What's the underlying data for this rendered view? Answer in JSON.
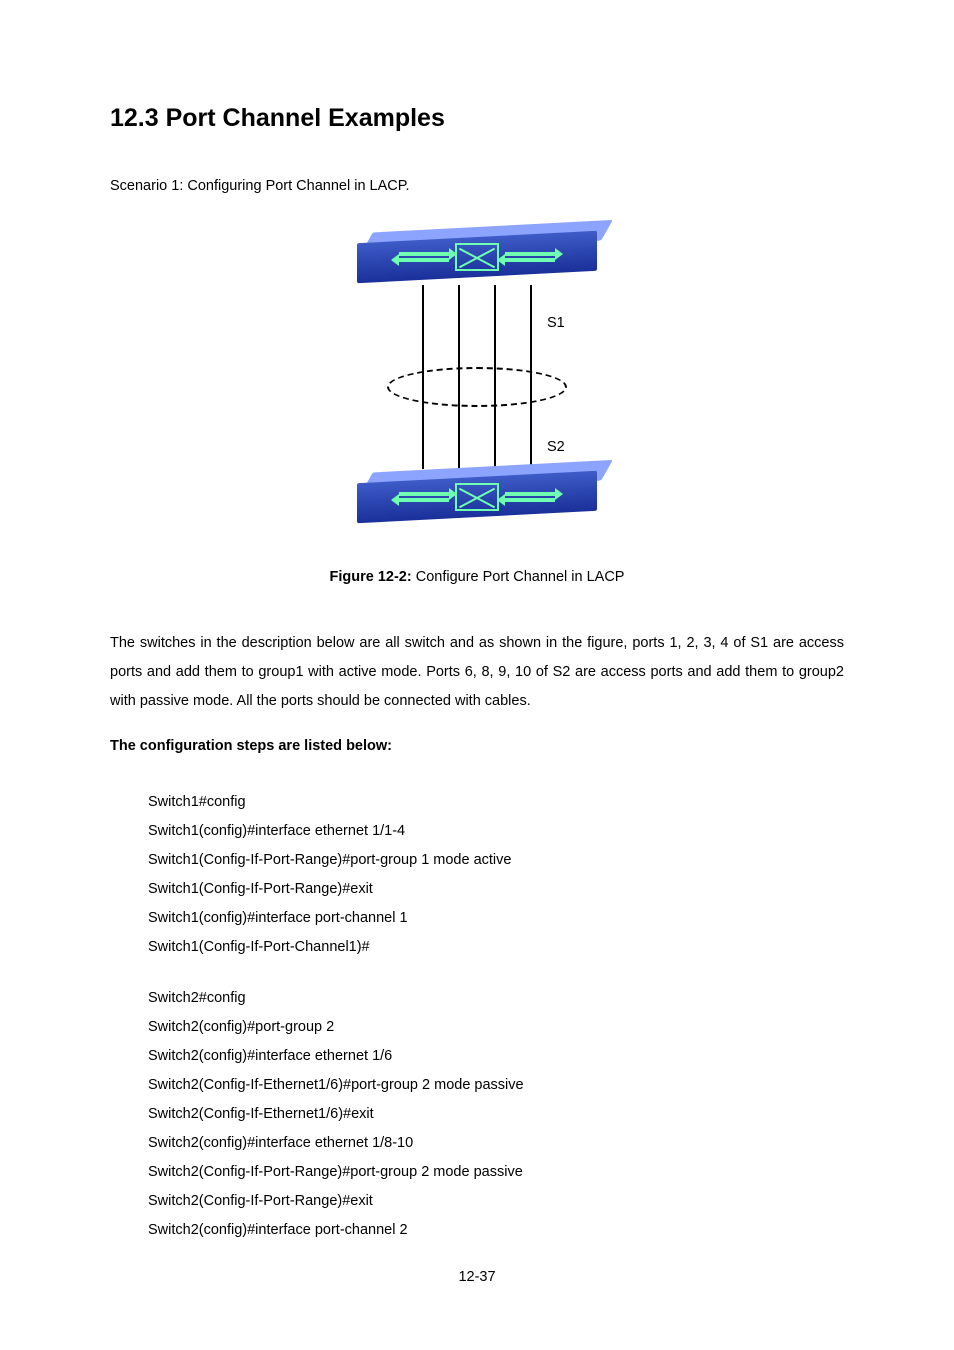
{
  "heading": "12.3 Port Channel Examples",
  "scenario_text": "Scenario 1: Configuring Port Channel in LACP.",
  "diagram": {
    "label_top": "S1",
    "label_bottom": "S2",
    "switch_color_dark": "#1a2f99",
    "switch_color_light": "#3e5cc7",
    "arrow_color": "#6fffb0",
    "link_count": 4
  },
  "figure_caption_bold": "Figure 12-2:",
  "figure_caption_rest": " Configure Port Channel in LACP",
  "description": "The switches in the description below are all switch and as shown in the figure, ports 1, 2, 3, 4 of S1 are access ports and add them to group1 with active mode. Ports 6, 8, 9, 10 of S2 are access ports and add them to group2 with passive mode. All the ports should be connected with cables.",
  "steps_heading": "The configuration steps are listed below:",
  "config1": [
    "Switch1#config",
    "Switch1(config)#interface ethernet 1/1-4",
    "Switch1(Config-If-Port-Range)#port-group 1 mode active",
    "Switch1(Config-If-Port-Range)#exit",
    "Switch1(config)#interface port-channel 1",
    "Switch1(Config-If-Port-Channel1)#"
  ],
  "config2": [
    "Switch2#config",
    "Switch2(config)#port-group 2",
    "Switch2(config)#interface ethernet 1/6",
    "Switch2(Config-If-Ethernet1/6)#port-group 2 mode passive",
    "Switch2(Config-If-Ethernet1/6)#exit",
    "Switch2(config)#interface ethernet 1/8-10",
    "Switch2(Config-If-Port-Range)#port-group 2 mode passive",
    "Switch2(Config-If-Port-Range)#exit",
    "Switch2(config)#interface port-channel 2"
  ],
  "page_number": "12-37"
}
